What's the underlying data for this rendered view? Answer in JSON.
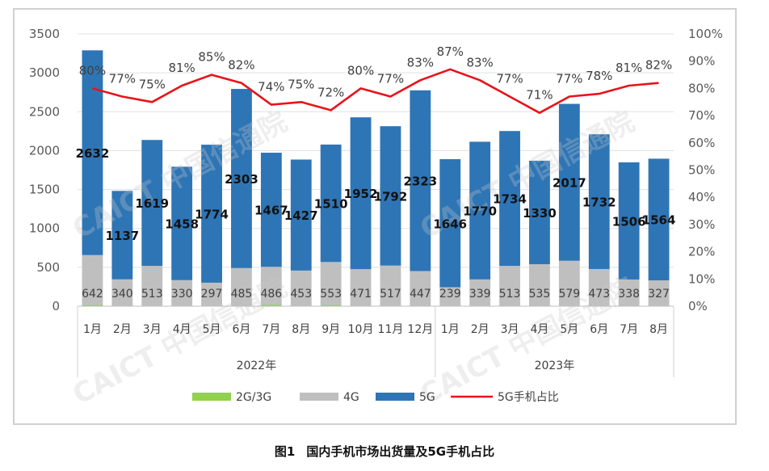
{
  "caption": {
    "number": "图1",
    "title": "国内手机市场出货量及5G手机占比"
  },
  "watermark": "CAICT 中国信通院",
  "colors": {
    "g2g3g": "#92d050",
    "g4g": "#bfbfbf",
    "g5g": "#2e75b6",
    "share": "#e8131b",
    "grid": "#e0e0e0"
  },
  "chart_data": {
    "type": "bar",
    "stacked": true,
    "groups": [
      {
        "label": "2022年",
        "months": [
          "1月",
          "2月",
          "3月",
          "4月",
          "5月",
          "6月",
          "7月",
          "8月",
          "9月",
          "10月",
          "11月",
          "12月"
        ]
      },
      {
        "label": "2023年",
        "months": [
          "1月",
          "2月",
          "3月",
          "4月",
          "5月",
          "6月",
          "7月",
          "8月"
        ]
      }
    ],
    "series": [
      {
        "name": "2G/3G",
        "values": [
          15,
          5,
          5,
          5,
          5,
          5,
          20,
          5,
          15,
          5,
          5,
          5,
          5,
          5,
          5,
          5,
          5,
          5,
          5,
          5
        ]
      },
      {
        "name": "4G",
        "values": [
          642,
          340,
          513,
          330,
          297,
          485,
          486,
          453,
          553,
          471,
          517,
          447,
          239,
          339,
          513,
          535,
          579,
          473,
          338,
          327
        ]
      },
      {
        "name": "5G",
        "values": [
          2632,
          1137,
          1619,
          1458,
          1774,
          2303,
          1467,
          1427,
          1510,
          1952,
          1792,
          2323,
          1646,
          1770,
          1734,
          1330,
          2017,
          1732,
          1506,
          1564
        ]
      }
    ],
    "share": {
      "name": "5G手机占比",
      "values": [
        80,
        77,
        75,
        81,
        85,
        82,
        74,
        75,
        72,
        80,
        77,
        83,
        87,
        83,
        77,
        71,
        77,
        78,
        81,
        82
      ],
      "labels": [
        "80%",
        "77%",
        "75%",
        "81%",
        "85%",
        "82%",
        "74%",
        "75%",
        "72%",
        "80%",
        "77%",
        "83%",
        "87%",
        "83%",
        "77%",
        "71%",
        "77%",
        "78%",
        "81%",
        "82%"
      ]
    },
    "y_left": {
      "ylim": [
        0,
        3500
      ],
      "ticks": [
        "0",
        "500",
        "1000",
        "1500",
        "2000",
        "2500",
        "3000",
        "3500"
      ]
    },
    "y_right": {
      "ylim": [
        0,
        100
      ],
      "ticks": [
        "0%",
        "10%",
        "20%",
        "30%",
        "40%",
        "50%",
        "60%",
        "70%",
        "80%",
        "90%",
        "100%"
      ]
    },
    "legend": {
      "position": "bottom",
      "items": [
        "2G/3G",
        "4G",
        "5G",
        "5G手机占比"
      ]
    },
    "grid": true
  }
}
